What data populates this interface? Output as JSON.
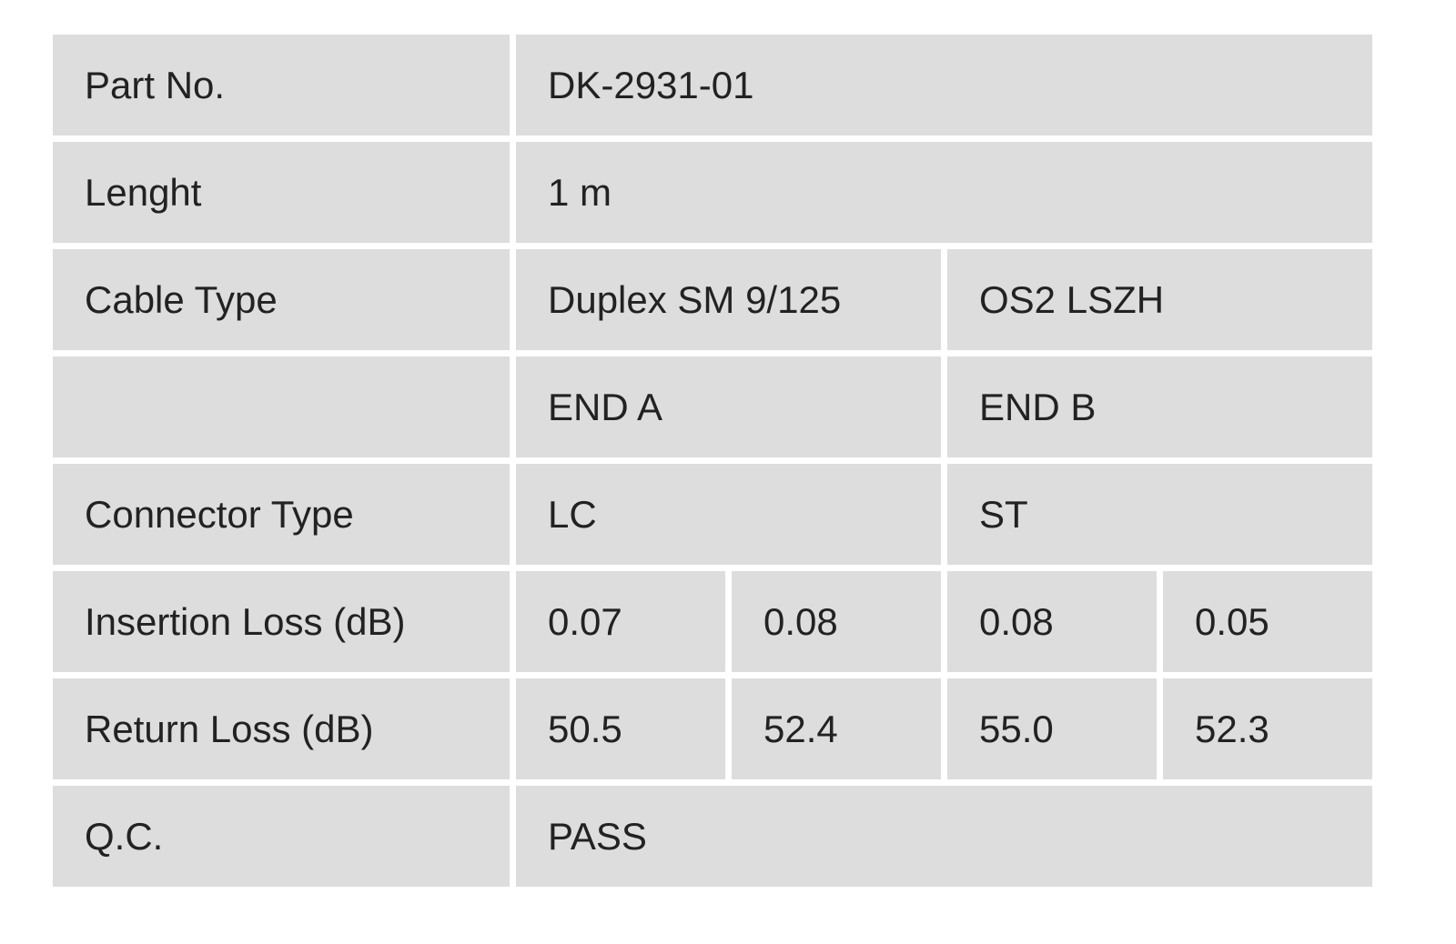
{
  "table": {
    "rows": [
      {
        "label": "Part No.",
        "cells": [
          "DK-2931-01"
        ]
      },
      {
        "label": "Lenght",
        "cells": [
          "1 m"
        ]
      },
      {
        "label": "Cable Type",
        "cells": [
          "Duplex SM 9/125",
          "OS2 LSZH"
        ]
      },
      {
        "cells": [
          "END A",
          "END B"
        ]
      },
      {
        "label": "Connector Type",
        "cells": [
          "LC",
          "ST"
        ]
      },
      {
        "label": "Insertion Loss (dB)",
        "cells": [
          "0.07",
          "0.08",
          "0.08",
          "0.05"
        ]
      },
      {
        "label": "Return Loss (dB)",
        "cells": [
          "50.5",
          "52.4",
          "55.0",
          "52.3"
        ]
      },
      {
        "label": "Q.C.",
        "cells": [
          "PASS"
        ]
      }
    ]
  }
}
